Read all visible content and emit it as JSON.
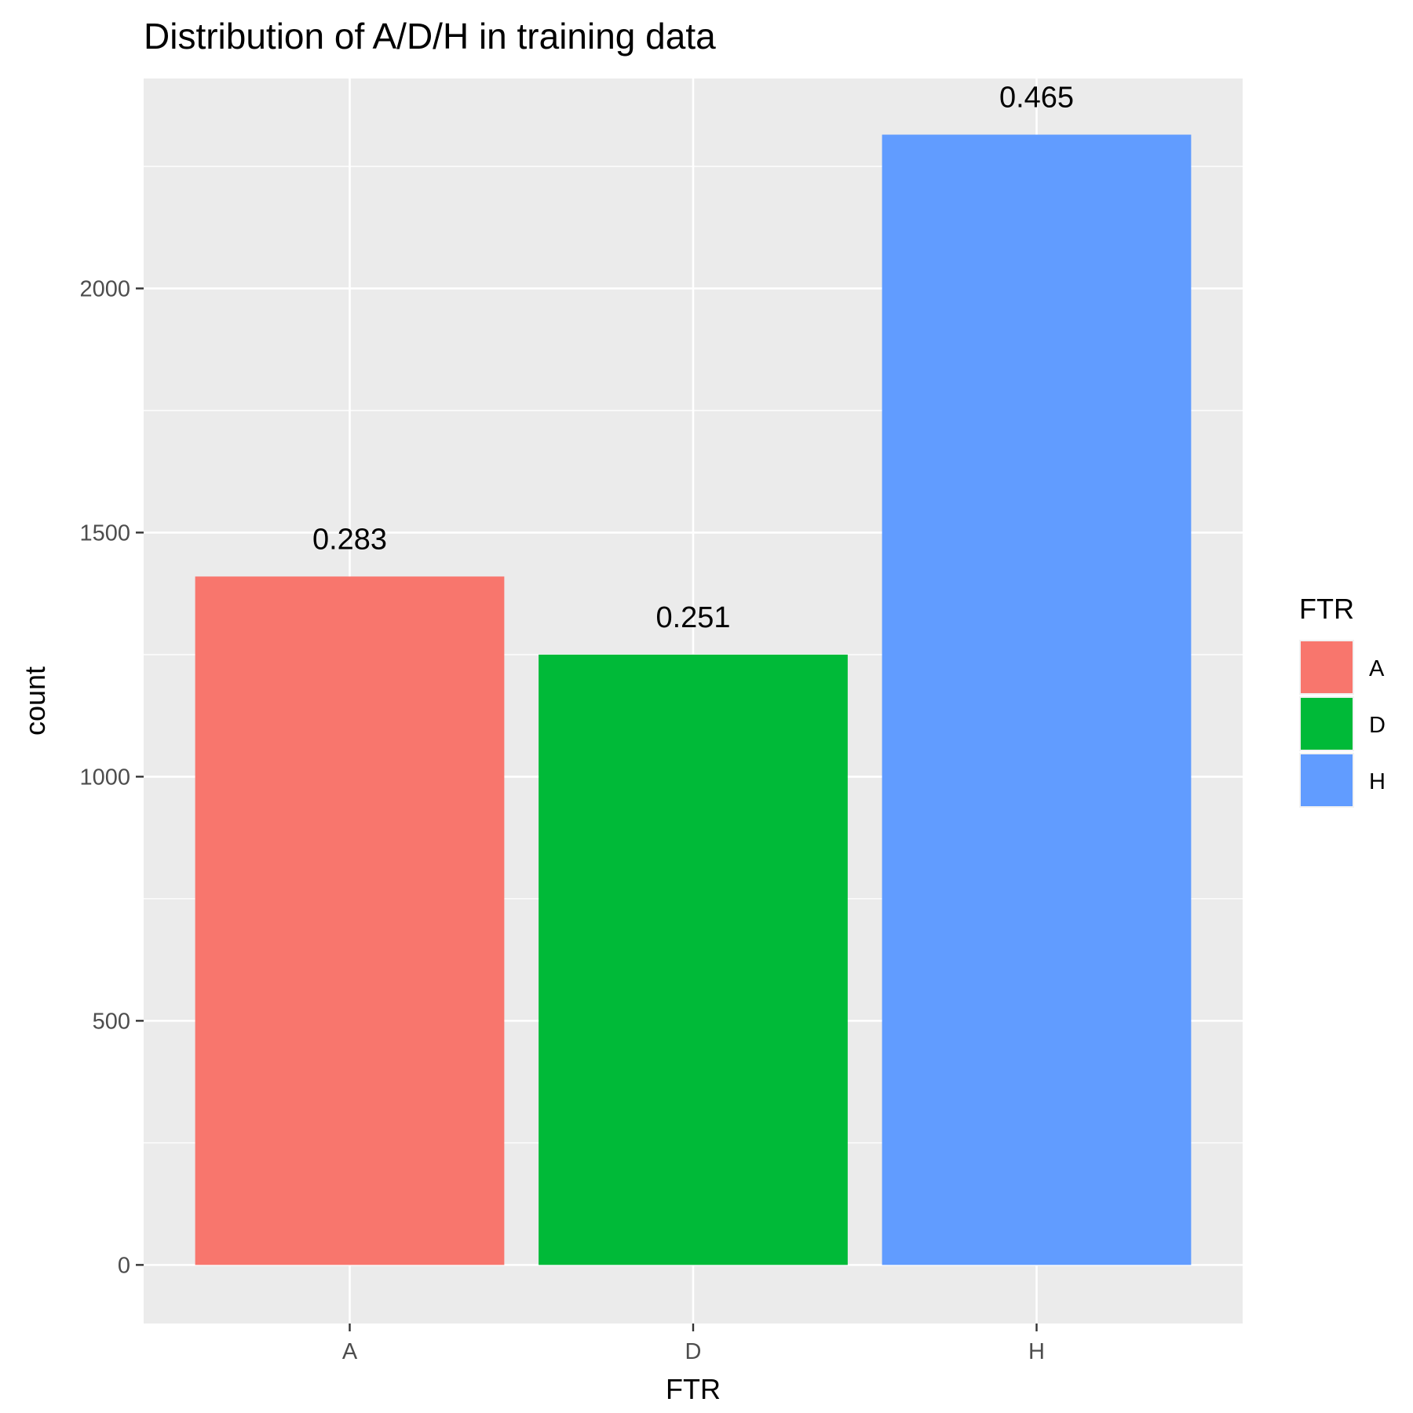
{
  "chart_data": {
    "type": "bar",
    "title": "Distribution of A/D/H in training data",
    "xlabel": "FTR",
    "ylabel": "count",
    "categories": [
      "A",
      "D",
      "H"
    ],
    "values": [
      1410,
      1250,
      2315
    ],
    "bar_labels": [
      "0.283",
      "0.251",
      "0.465"
    ],
    "colors": [
      "#F8766D",
      "#00BA38",
      "#619CFF"
    ],
    "ylim": [
      -120,
      2430
    ],
    "yticks": [
      0,
      500,
      1000,
      1500,
      2000
    ],
    "ytick_labels": [
      "0",
      "500",
      "1000",
      "1500",
      "2000"
    ],
    "grid": true,
    "legend": {
      "title": "FTR",
      "entries": [
        "A",
        "D",
        "H"
      ],
      "placement": "right"
    }
  }
}
